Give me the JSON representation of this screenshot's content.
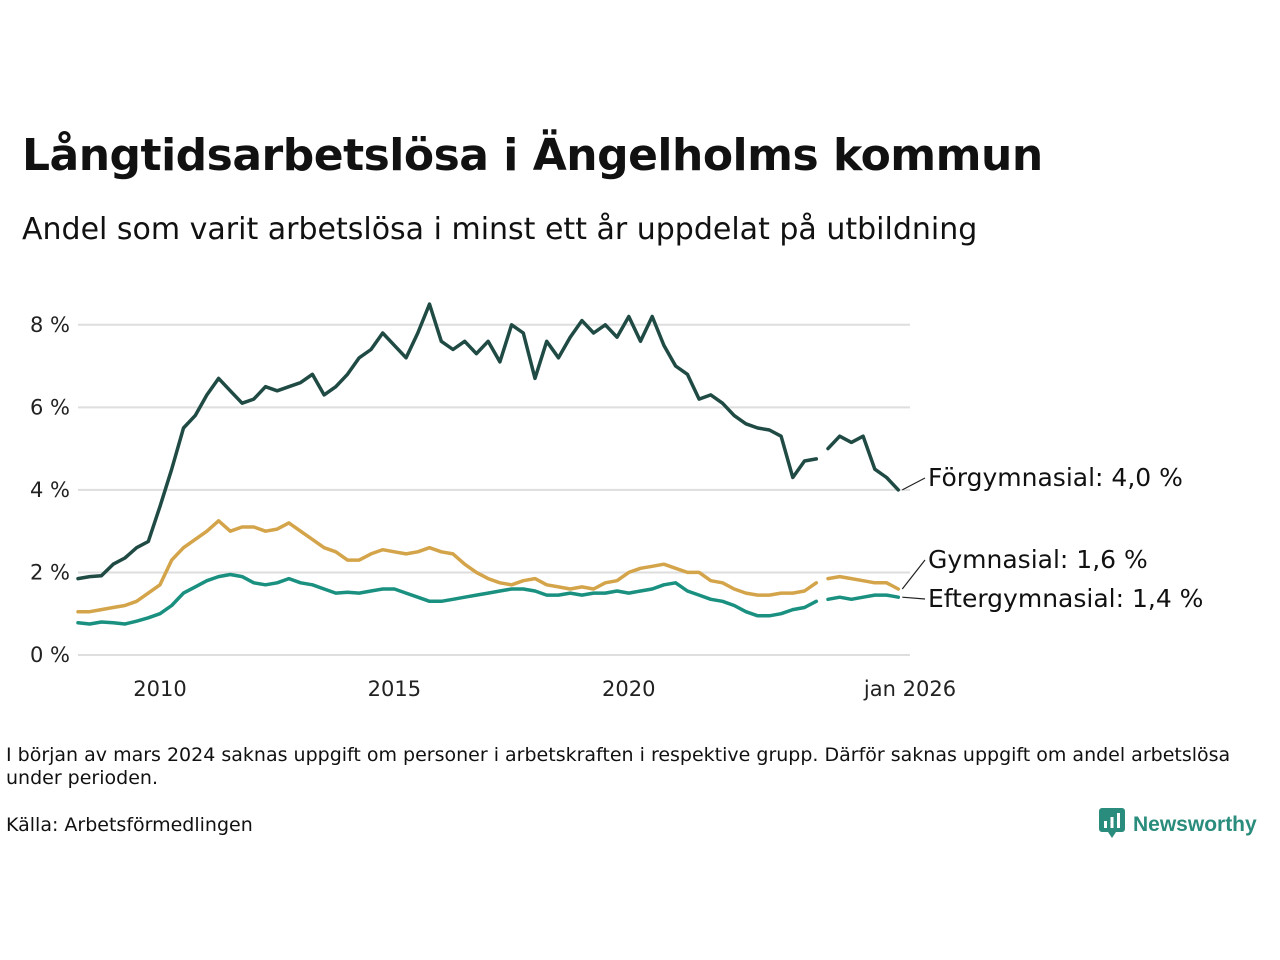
{
  "title": "Långtidsarbetslösa i Ängelholms kommun",
  "subtitle": "Andel som varit arbetslösa i minst ett år uppdelat på utbildning",
  "note": "I början av mars 2024 saknas uppgift om personer i arbetskraften i respektive grupp. Därför saknas uppgift om andel arbetslösa under perioden.",
  "source": "Källa: Arbetsförmedlingen",
  "brand": {
    "name": "Newsworthy",
    "icon": "newsworthy-logo-icon",
    "color": "#2a8c7c"
  },
  "chart_data": {
    "type": "line",
    "title": "Långtidsarbetslösa i Ängelholms kommun",
    "subtitle": "Andel som varit arbetslösa i minst ett år uppdelat på utbildning",
    "xlabel": "",
    "ylabel": "",
    "x_range": [
      2008.25,
      2026.0
    ],
    "ylim": [
      0,
      8.6
    ],
    "y_ticks": [
      0,
      2,
      4,
      6,
      8
    ],
    "y_tick_labels": [
      "0 %",
      "2 %",
      "4 %",
      "6 %",
      "8 %"
    ],
    "x_ticks": [
      2010,
      2015,
      2020,
      2026.0
    ],
    "x_tick_labels": [
      "2010",
      "2015",
      "2020",
      "jan 2026"
    ],
    "grid": true,
    "gap": [
      2024.0,
      2024.25
    ],
    "series": [
      {
        "name": "Förgymnasial",
        "label": "Förgymnasial: 4,0 %",
        "color": "#1f4b44",
        "points": [
          [
            2008.25,
            1.85
          ],
          [
            2008.5,
            1.9
          ],
          [
            2008.75,
            1.92
          ],
          [
            2009.0,
            2.2
          ],
          [
            2009.25,
            2.35
          ],
          [
            2009.5,
            2.6
          ],
          [
            2009.75,
            2.75
          ],
          [
            2010.0,
            3.6
          ],
          [
            2010.25,
            4.5
          ],
          [
            2010.5,
            5.5
          ],
          [
            2010.75,
            5.8
          ],
          [
            2011.0,
            6.3
          ],
          [
            2011.25,
            6.7
          ],
          [
            2011.5,
            6.4
          ],
          [
            2011.75,
            6.1
          ],
          [
            2012.0,
            6.2
          ],
          [
            2012.25,
            6.5
          ],
          [
            2012.5,
            6.4
          ],
          [
            2012.75,
            6.5
          ],
          [
            2013.0,
            6.6
          ],
          [
            2013.25,
            6.8
          ],
          [
            2013.5,
            6.3
          ],
          [
            2013.75,
            6.5
          ],
          [
            2014.0,
            6.8
          ],
          [
            2014.25,
            7.2
          ],
          [
            2014.5,
            7.4
          ],
          [
            2014.75,
            7.8
          ],
          [
            2015.0,
            7.5
          ],
          [
            2015.25,
            7.2
          ],
          [
            2015.5,
            7.8
          ],
          [
            2015.75,
            8.5
          ],
          [
            2016.0,
            7.6
          ],
          [
            2016.25,
            7.4
          ],
          [
            2016.5,
            7.6
          ],
          [
            2016.75,
            7.3
          ],
          [
            2017.0,
            7.6
          ],
          [
            2017.25,
            7.1
          ],
          [
            2017.5,
            8.0
          ],
          [
            2017.75,
            7.8
          ],
          [
            2018.0,
            6.7
          ],
          [
            2018.25,
            7.6
          ],
          [
            2018.5,
            7.2
          ],
          [
            2018.75,
            7.7
          ],
          [
            2019.0,
            8.1
          ],
          [
            2019.25,
            7.8
          ],
          [
            2019.5,
            8.0
          ],
          [
            2019.75,
            7.7
          ],
          [
            2020.0,
            8.2
          ],
          [
            2020.25,
            7.6
          ],
          [
            2020.5,
            8.2
          ],
          [
            2020.75,
            7.5
          ],
          [
            2021.0,
            7.0
          ],
          [
            2021.25,
            6.8
          ],
          [
            2021.5,
            6.2
          ],
          [
            2021.75,
            6.3
          ],
          [
            2022.0,
            6.1
          ],
          [
            2022.25,
            5.8
          ],
          [
            2022.5,
            5.6
          ],
          [
            2022.75,
            5.5
          ],
          [
            2023.0,
            5.45
          ],
          [
            2023.25,
            5.3
          ],
          [
            2023.5,
            4.3
          ],
          [
            2023.75,
            4.7
          ],
          [
            2024.0,
            4.75
          ],
          [
            2024.25,
            5.0
          ],
          [
            2024.5,
            5.3
          ],
          [
            2024.75,
            5.15
          ],
          [
            2025.0,
            5.3
          ],
          [
            2025.25,
            4.5
          ],
          [
            2025.5,
            4.3
          ],
          [
            2025.75,
            4.0
          ]
        ]
      },
      {
        "name": "Gymnasial",
        "label": "Gymnasial: 1,6 %",
        "color": "#d4a44a",
        "points": [
          [
            2008.25,
            1.05
          ],
          [
            2008.5,
            1.05
          ],
          [
            2008.75,
            1.1
          ],
          [
            2009.0,
            1.15
          ],
          [
            2009.25,
            1.2
          ],
          [
            2009.5,
            1.3
          ],
          [
            2009.75,
            1.5
          ],
          [
            2010.0,
            1.7
          ],
          [
            2010.25,
            2.3
          ],
          [
            2010.5,
            2.6
          ],
          [
            2010.75,
            2.8
          ],
          [
            2011.0,
            3.0
          ],
          [
            2011.25,
            3.25
          ],
          [
            2011.5,
            3.0
          ],
          [
            2011.75,
            3.1
          ],
          [
            2012.0,
            3.1
          ],
          [
            2012.25,
            3.0
          ],
          [
            2012.5,
            3.05
          ],
          [
            2012.75,
            3.2
          ],
          [
            2013.0,
            3.0
          ],
          [
            2013.25,
            2.8
          ],
          [
            2013.5,
            2.6
          ],
          [
            2013.75,
            2.5
          ],
          [
            2014.0,
            2.3
          ],
          [
            2014.25,
            2.3
          ],
          [
            2014.5,
            2.45
          ],
          [
            2014.75,
            2.55
          ],
          [
            2015.0,
            2.5
          ],
          [
            2015.25,
            2.45
          ],
          [
            2015.5,
            2.5
          ],
          [
            2015.75,
            2.6
          ],
          [
            2016.0,
            2.5
          ],
          [
            2016.25,
            2.45
          ],
          [
            2016.5,
            2.2
          ],
          [
            2016.75,
            2.0
          ],
          [
            2017.0,
            1.85
          ],
          [
            2017.25,
            1.75
          ],
          [
            2017.5,
            1.7
          ],
          [
            2017.75,
            1.8
          ],
          [
            2018.0,
            1.85
          ],
          [
            2018.25,
            1.7
          ],
          [
            2018.5,
            1.65
          ],
          [
            2018.75,
            1.6
          ],
          [
            2019.0,
            1.65
          ],
          [
            2019.25,
            1.6
          ],
          [
            2019.5,
            1.75
          ],
          [
            2019.75,
            1.8
          ],
          [
            2020.0,
            2.0
          ],
          [
            2020.25,
            2.1
          ],
          [
            2020.5,
            2.15
          ],
          [
            2020.75,
            2.2
          ],
          [
            2021.0,
            2.1
          ],
          [
            2021.25,
            2.0
          ],
          [
            2021.5,
            2.0
          ],
          [
            2021.75,
            1.8
          ],
          [
            2022.0,
            1.75
          ],
          [
            2022.25,
            1.6
          ],
          [
            2022.5,
            1.5
          ],
          [
            2022.75,
            1.45
          ],
          [
            2023.0,
            1.45
          ],
          [
            2023.25,
            1.5
          ],
          [
            2023.5,
            1.5
          ],
          [
            2023.75,
            1.55
          ],
          [
            2024.0,
            1.75
          ],
          [
            2024.25,
            1.85
          ],
          [
            2024.5,
            1.9
          ],
          [
            2024.75,
            1.85
          ],
          [
            2025.0,
            1.8
          ],
          [
            2025.25,
            1.75
          ],
          [
            2025.5,
            1.75
          ],
          [
            2025.75,
            1.6
          ]
        ]
      },
      {
        "name": "Eftergymnasial",
        "label": "Eftergymnasial: 1,4 %",
        "color": "#1a9080",
        "points": [
          [
            2008.25,
            0.78
          ],
          [
            2008.5,
            0.75
          ],
          [
            2008.75,
            0.8
          ],
          [
            2009.0,
            0.78
          ],
          [
            2009.25,
            0.75
          ],
          [
            2009.5,
            0.82
          ],
          [
            2009.75,
            0.9
          ],
          [
            2010.0,
            1.0
          ],
          [
            2010.25,
            1.2
          ],
          [
            2010.5,
            1.5
          ],
          [
            2010.75,
            1.65
          ],
          [
            2011.0,
            1.8
          ],
          [
            2011.25,
            1.9
          ],
          [
            2011.5,
            1.95
          ],
          [
            2011.75,
            1.9
          ],
          [
            2012.0,
            1.75
          ],
          [
            2012.25,
            1.7
          ],
          [
            2012.5,
            1.75
          ],
          [
            2012.75,
            1.85
          ],
          [
            2013.0,
            1.75
          ],
          [
            2013.25,
            1.7
          ],
          [
            2013.5,
            1.6
          ],
          [
            2013.75,
            1.5
          ],
          [
            2014.0,
            1.52
          ],
          [
            2014.25,
            1.5
          ],
          [
            2014.5,
            1.55
          ],
          [
            2014.75,
            1.6
          ],
          [
            2015.0,
            1.6
          ],
          [
            2015.25,
            1.5
          ],
          [
            2015.5,
            1.4
          ],
          [
            2015.75,
            1.3
          ],
          [
            2016.0,
            1.3
          ],
          [
            2016.25,
            1.35
          ],
          [
            2016.5,
            1.4
          ],
          [
            2016.75,
            1.45
          ],
          [
            2017.0,
            1.5
          ],
          [
            2017.25,
            1.55
          ],
          [
            2017.5,
            1.6
          ],
          [
            2017.75,
            1.6
          ],
          [
            2018.0,
            1.55
          ],
          [
            2018.25,
            1.45
          ],
          [
            2018.5,
            1.45
          ],
          [
            2018.75,
            1.5
          ],
          [
            2019.0,
            1.45
          ],
          [
            2019.25,
            1.5
          ],
          [
            2019.5,
            1.5
          ],
          [
            2019.75,
            1.55
          ],
          [
            2020.0,
            1.5
          ],
          [
            2020.25,
            1.55
          ],
          [
            2020.5,
            1.6
          ],
          [
            2020.75,
            1.7
          ],
          [
            2021.0,
            1.75
          ],
          [
            2021.25,
            1.55
          ],
          [
            2021.5,
            1.45
          ],
          [
            2021.75,
            1.35
          ],
          [
            2022.0,
            1.3
          ],
          [
            2022.25,
            1.2
          ],
          [
            2022.5,
            1.05
          ],
          [
            2022.75,
            0.95
          ],
          [
            2023.0,
            0.95
          ],
          [
            2023.25,
            1.0
          ],
          [
            2023.5,
            1.1
          ],
          [
            2023.75,
            1.15
          ],
          [
            2024.0,
            1.3
          ],
          [
            2024.25,
            1.35
          ],
          [
            2024.5,
            1.4
          ],
          [
            2024.75,
            1.35
          ],
          [
            2025.0,
            1.4
          ],
          [
            2025.25,
            1.45
          ],
          [
            2025.5,
            1.45
          ],
          [
            2025.75,
            1.4
          ]
        ]
      }
    ]
  }
}
